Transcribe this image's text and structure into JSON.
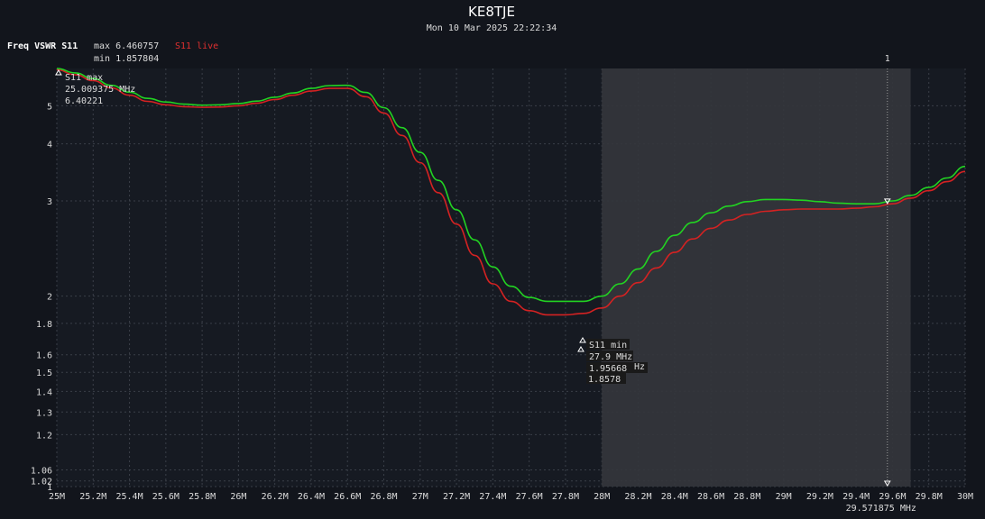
{
  "header": {
    "title": "KE8TJE",
    "datetime": "Mon 10 Mar 2025 22:22:34"
  },
  "legend": {
    "label": "Freq VSWR S11",
    "max_text": "max 6.460757",
    "min_text": "min 1.857804",
    "live_text": "S11 live"
  },
  "colors": {
    "background": "#12151c",
    "plot_bg": "#161a22",
    "grid": "#3a3f48",
    "trace_green": "#22d322",
    "trace_red": "#d42222",
    "span": "#34363c"
  },
  "markers": {
    "max_marker": {
      "label": "S11 max",
      "freq": "25.009375 MHz",
      "value": "6.40221"
    },
    "min_marker": {
      "label": "S11 min",
      "freq": "27.9 MHz",
      "value1": "1.95668",
      "value2": "1.8578",
      "unit_fragment": "Hz"
    },
    "cursor": {
      "number": "1",
      "freq": "29.571875 MHz"
    }
  },
  "chart_data": {
    "type": "line",
    "xlabel": "",
    "ylabel": "",
    "x_scale": "linear",
    "y_scale": "vswr",
    "xlim": [
      25.0,
      30.0
    ],
    "ylim": [
      1.0,
      6.46
    ],
    "x_tick_labels": [
      "25M",
      "25.2M",
      "25.4M",
      "25.6M",
      "25.8M",
      "26M",
      "26.2M",
      "26.4M",
      "26.6M",
      "26.8M",
      "27M",
      "27.2M",
      "27.4M",
      "27.6M",
      "27.8M",
      "28M",
      "28.2M",
      "28.4M",
      "28.6M",
      "28.8M",
      "29M",
      "29.2M",
      "29.4M",
      "29.6M",
      "29.8M",
      "30M"
    ],
    "y_ticks": [
      1,
      1.02,
      1.06,
      1.2,
      1.3,
      1.4,
      1.5,
      1.6,
      1.8,
      2,
      3,
      4,
      5
    ],
    "y_tick_labels": [
      "1",
      "1.02",
      "1.06",
      "1.2",
      "1.3",
      "1.4",
      "1.5",
      "1.6",
      "1.8",
      "2",
      "3",
      "4",
      "5"
    ],
    "highlight_span": [
      28.0,
      29.7
    ],
    "cursor_x": 29.571875,
    "grid": true,
    "series": [
      {
        "name": "",
        "color": "#22d322",
        "x": [
          25.0,
          25.1,
          25.2,
          25.3,
          25.4,
          25.5,
          25.6,
          25.7,
          25.8,
          25.9,
          26.0,
          26.1,
          26.2,
          26.3,
          26.4,
          26.5,
          26.6,
          26.7,
          26.8,
          26.9,
          27.0,
          27.1,
          27.2,
          27.3,
          27.4,
          27.5,
          27.6,
          27.7,
          27.8,
          27.9,
          28.0,
          28.1,
          28.2,
          28.3,
          28.4,
          28.5,
          28.6,
          28.7,
          28.8,
          28.9,
          29.0,
          29.1,
          29.2,
          29.3,
          29.4,
          29.5,
          29.6,
          29.7,
          29.8,
          29.9,
          30.0
        ],
        "values": [
          6.46,
          6.25,
          6.0,
          5.72,
          5.46,
          5.24,
          5.12,
          5.05,
          5.02,
          5.03,
          5.07,
          5.15,
          5.28,
          5.43,
          5.6,
          5.71,
          5.72,
          5.45,
          4.94,
          4.38,
          3.82,
          3.31,
          2.88,
          2.52,
          2.25,
          2.08,
          1.99,
          1.96,
          1.96,
          1.96,
          2.0,
          2.1,
          2.23,
          2.4,
          2.57,
          2.72,
          2.84,
          2.93,
          2.99,
          3.02,
          3.02,
          3.01,
          2.99,
          2.97,
          2.96,
          2.96,
          3.0,
          3.08,
          3.2,
          3.35,
          3.55
        ]
      },
      {
        "name": "S11 live",
        "color": "#d42222",
        "x": [
          25.0,
          25.1,
          25.2,
          25.3,
          25.4,
          25.5,
          25.6,
          25.7,
          25.8,
          25.9,
          26.0,
          26.1,
          26.2,
          26.3,
          26.4,
          26.5,
          26.6,
          26.7,
          26.8,
          26.9,
          27.0,
          27.1,
          27.2,
          27.3,
          27.4,
          27.5,
          27.6,
          27.7,
          27.8,
          27.9,
          28.0,
          28.1,
          28.2,
          28.3,
          28.4,
          28.5,
          28.6,
          28.7,
          28.8,
          28.9,
          29.0,
          29.1,
          29.2,
          29.3,
          29.4,
          29.5,
          29.6,
          29.7,
          29.8,
          29.9,
          30.0
        ],
        "values": [
          6.4,
          6.17,
          5.91,
          5.62,
          5.35,
          5.14,
          5.03,
          4.97,
          4.95,
          4.96,
          5.0,
          5.08,
          5.2,
          5.35,
          5.5,
          5.6,
          5.6,
          5.3,
          4.78,
          4.19,
          3.62,
          3.12,
          2.7,
          2.36,
          2.1,
          1.96,
          1.89,
          1.86,
          1.86,
          1.87,
          1.91,
          2.0,
          2.11,
          2.24,
          2.39,
          2.53,
          2.65,
          2.75,
          2.82,
          2.86,
          2.88,
          2.89,
          2.89,
          2.89,
          2.9,
          2.92,
          2.96,
          3.04,
          3.15,
          3.29,
          3.46
        ]
      }
    ]
  }
}
